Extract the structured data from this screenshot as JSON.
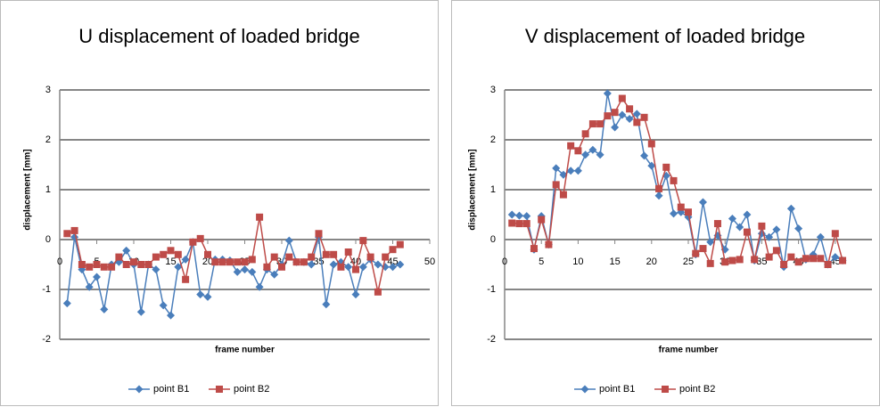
{
  "chart_data": [
    {
      "type": "line",
      "title": "U displacement of loaded bridge",
      "x_label": "frame number",
      "y_label": "displacement [mm]",
      "x": [
        1,
        2,
        3,
        4,
        5,
        6,
        7,
        8,
        9,
        10,
        11,
        12,
        13,
        14,
        15,
        16,
        17,
        18,
        19,
        20,
        21,
        22,
        23,
        24,
        25,
        26,
        27,
        28,
        29,
        30,
        31,
        32,
        33,
        34,
        35,
        36,
        37,
        38,
        39,
        40,
        41,
        42,
        43,
        44,
        45,
        46
      ],
      "series": [
        {
          "name": "point B1",
          "color": "#4a7ebb",
          "marker": "diamond",
          "values": [
            -1.28,
            0.05,
            -0.6,
            -0.95,
            -0.75,
            -1.4,
            -0.5,
            -0.45,
            -0.22,
            -0.5,
            -1.45,
            -0.5,
            -0.6,
            -1.32,
            -1.52,
            -0.55,
            -0.4,
            -0.05,
            -1.1,
            -1.15,
            -0.4,
            -0.4,
            -0.42,
            -0.65,
            -0.6,
            -0.65,
            -0.95,
            -0.6,
            -0.7,
            -0.5,
            -0.02,
            -0.45,
            -0.45,
            -0.5,
            0.05,
            -1.3,
            -0.5,
            -0.45,
            -0.55,
            -1.1,
            -0.55,
            -0.4,
            -0.5,
            -0.55,
            -0.55,
            -0.5
          ]
        },
        {
          "name": "point B2",
          "color": "#be4b48",
          "marker": "square",
          "values": [
            0.12,
            0.18,
            -0.5,
            -0.55,
            -0.5,
            -0.55,
            -0.55,
            -0.35,
            -0.5,
            -0.45,
            -0.5,
            -0.5,
            -0.35,
            -0.3,
            -0.22,
            -0.3,
            -0.8,
            -0.05,
            0.02,
            -0.3,
            -0.45,
            -0.45,
            -0.45,
            -0.45,
            -0.45,
            -0.4,
            0.45,
            -0.55,
            -0.35,
            -0.55,
            -0.35,
            -0.45,
            -0.45,
            -0.35,
            0.12,
            -0.3,
            -0.3,
            -0.55,
            -0.25,
            -0.6,
            -0.02,
            -0.35,
            -1.05,
            -0.35,
            -0.2,
            -0.1
          ]
        }
      ],
      "xlim": [
        0,
        50
      ],
      "xticks": [
        0,
        5,
        10,
        15,
        20,
        25,
        30,
        35,
        40,
        45,
        50
      ],
      "ylim": [
        -2,
        3
      ],
      "yticks": [
        3,
        2,
        1,
        0,
        -1,
        -2
      ],
      "grid": true,
      "legend": "bottom"
    },
    {
      "type": "line",
      "title": "V displacement of loaded bridge",
      "x_label": "frame number",
      "y_label": "displacement [mm]",
      "x": [
        1,
        2,
        3,
        4,
        5,
        6,
        7,
        8,
        9,
        10,
        11,
        12,
        13,
        14,
        15,
        16,
        17,
        18,
        19,
        20,
        21,
        22,
        23,
        24,
        25,
        26,
        27,
        28,
        29,
        30,
        31,
        32,
        33,
        34,
        35,
        36,
        37,
        38,
        39,
        40,
        41,
        42,
        43,
        44,
        45,
        46
      ],
      "series": [
        {
          "name": "point B1",
          "color": "#4a7ebb",
          "marker": "diamond",
          "values": [
            0.5,
            0.48,
            0.47,
            -0.2,
            0.47,
            -0.1,
            1.43,
            1.3,
            1.38,
            1.38,
            1.7,
            1.8,
            1.7,
            2.93,
            2.25,
            2.5,
            2.42,
            2.52,
            1.68,
            1.48,
            0.88,
            1.28,
            0.52,
            0.55,
            0.45,
            -0.3,
            0.75,
            -0.05,
            0.08,
            -0.2,
            0.42,
            0.25,
            0.5,
            -0.42,
            0.12,
            0.05,
            0.2,
            -0.55,
            0.62,
            0.22,
            -0.4,
            -0.3,
            0.05,
            -0.5,
            -0.35,
            -0.42
          ]
        },
        {
          "name": "point B2",
          "color": "#be4b48",
          "marker": "square",
          "values": [
            0.33,
            0.32,
            0.32,
            -0.18,
            0.4,
            -0.1,
            1.1,
            0.9,
            1.88,
            1.78,
            2.12,
            2.32,
            2.32,
            2.48,
            2.55,
            2.83,
            2.62,
            2.35,
            2.45,
            1.92,
            1.02,
            1.45,
            1.18,
            0.65,
            0.55,
            -0.28,
            -0.18,
            -0.48,
            0.32,
            -0.45,
            -0.42,
            -0.4,
            0.15,
            -0.4,
            0.27,
            -0.35,
            -0.22,
            -0.5,
            -0.35,
            -0.45,
            -0.38,
            -0.38,
            -0.38,
            -0.5,
            0.12,
            -0.42
          ]
        }
      ],
      "xlim": [
        0,
        50
      ],
      "xticks": [
        0,
        5,
        10,
        15,
        20,
        25,
        30,
        35,
        40,
        45
      ],
      "ylim": [
        -2,
        3
      ],
      "yticks": [
        3,
        2,
        1,
        0,
        -1,
        -2
      ],
      "grid": true,
      "legend": "bottom"
    }
  ]
}
